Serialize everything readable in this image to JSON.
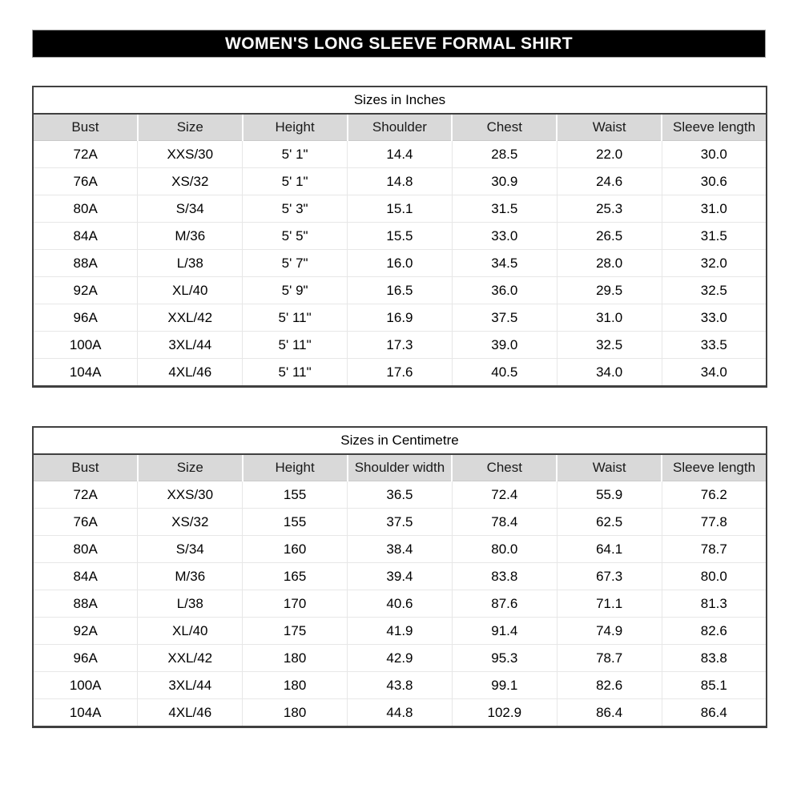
{
  "banner": {
    "title": "WOMEN'S LONG SLEEVE FORMAL SHIRT",
    "bg_color": "#000000",
    "text_color": "#ffffff"
  },
  "colors": {
    "header_row_bg": "#d9d9d9",
    "table_border": "#404040",
    "row_separator": "#e7e7e7",
    "page_bg": "#ffffff"
  },
  "tables": [
    {
      "caption": "Sizes in Inches",
      "headers": [
        "Bust",
        "Size",
        "Height",
        "Shoulder",
        "Chest",
        "Waist",
        "Sleeve length"
      ],
      "rows": [
        [
          "72A",
          "XXS/30",
          "5' 1\"",
          "14.4",
          "28.5",
          "22.0",
          "30.0"
        ],
        [
          "76A",
          "XS/32",
          "5' 1\"",
          "14.8",
          "30.9",
          "24.6",
          "30.6"
        ],
        [
          "80A",
          "S/34",
          "5' 3\"",
          "15.1",
          "31.5",
          "25.3",
          "31.0"
        ],
        [
          "84A",
          "M/36",
          "5' 5\"",
          "15.5",
          "33.0",
          "26.5",
          "31.5"
        ],
        [
          "88A",
          "L/38",
          "5' 7\"",
          "16.0",
          "34.5",
          "28.0",
          "32.0"
        ],
        [
          "92A",
          "XL/40",
          "5' 9\"",
          "16.5",
          "36.0",
          "29.5",
          "32.5"
        ],
        [
          "96A",
          "XXL/42",
          "5' 11\"",
          "16.9",
          "37.5",
          "31.0",
          "33.0"
        ],
        [
          "100A",
          "3XL/44",
          "5' 11\"",
          "17.3",
          "39.0",
          "32.5",
          "33.5"
        ],
        [
          "104A",
          "4XL/46",
          "5' 11\"",
          "17.6",
          "40.5",
          "34.0",
          "34.0"
        ]
      ]
    },
    {
      "caption": "Sizes in Centimetre",
      "headers": [
        "Bust",
        "Size",
        "Height",
        "Shoulder width",
        "Chest",
        "Waist",
        "Sleeve length"
      ],
      "rows": [
        [
          "72A",
          "XXS/30",
          "155",
          "36.5",
          "72.4",
          "55.9",
          "76.2"
        ],
        [
          "76A",
          "XS/32",
          "155",
          "37.5",
          "78.4",
          "62.5",
          "77.8"
        ],
        [
          "80A",
          "S/34",
          "160",
          "38.4",
          "80.0",
          "64.1",
          "78.7"
        ],
        [
          "84A",
          "M/36",
          "165",
          "39.4",
          "83.8",
          "67.3",
          "80.0"
        ],
        [
          "88A",
          "L/38",
          "170",
          "40.6",
          "87.6",
          "71.1",
          "81.3"
        ],
        [
          "92A",
          "XL/40",
          "175",
          "41.9",
          "91.4",
          "74.9",
          "82.6"
        ],
        [
          "96A",
          "XXL/42",
          "180",
          "42.9",
          "95.3",
          "78.7",
          "83.8"
        ],
        [
          "100A",
          "3XL/44",
          "180",
          "43.8",
          "99.1",
          "82.6",
          "85.1"
        ],
        [
          "104A",
          "4XL/46",
          "180",
          "44.8",
          "102.9",
          "86.4",
          "86.4"
        ]
      ]
    }
  ]
}
